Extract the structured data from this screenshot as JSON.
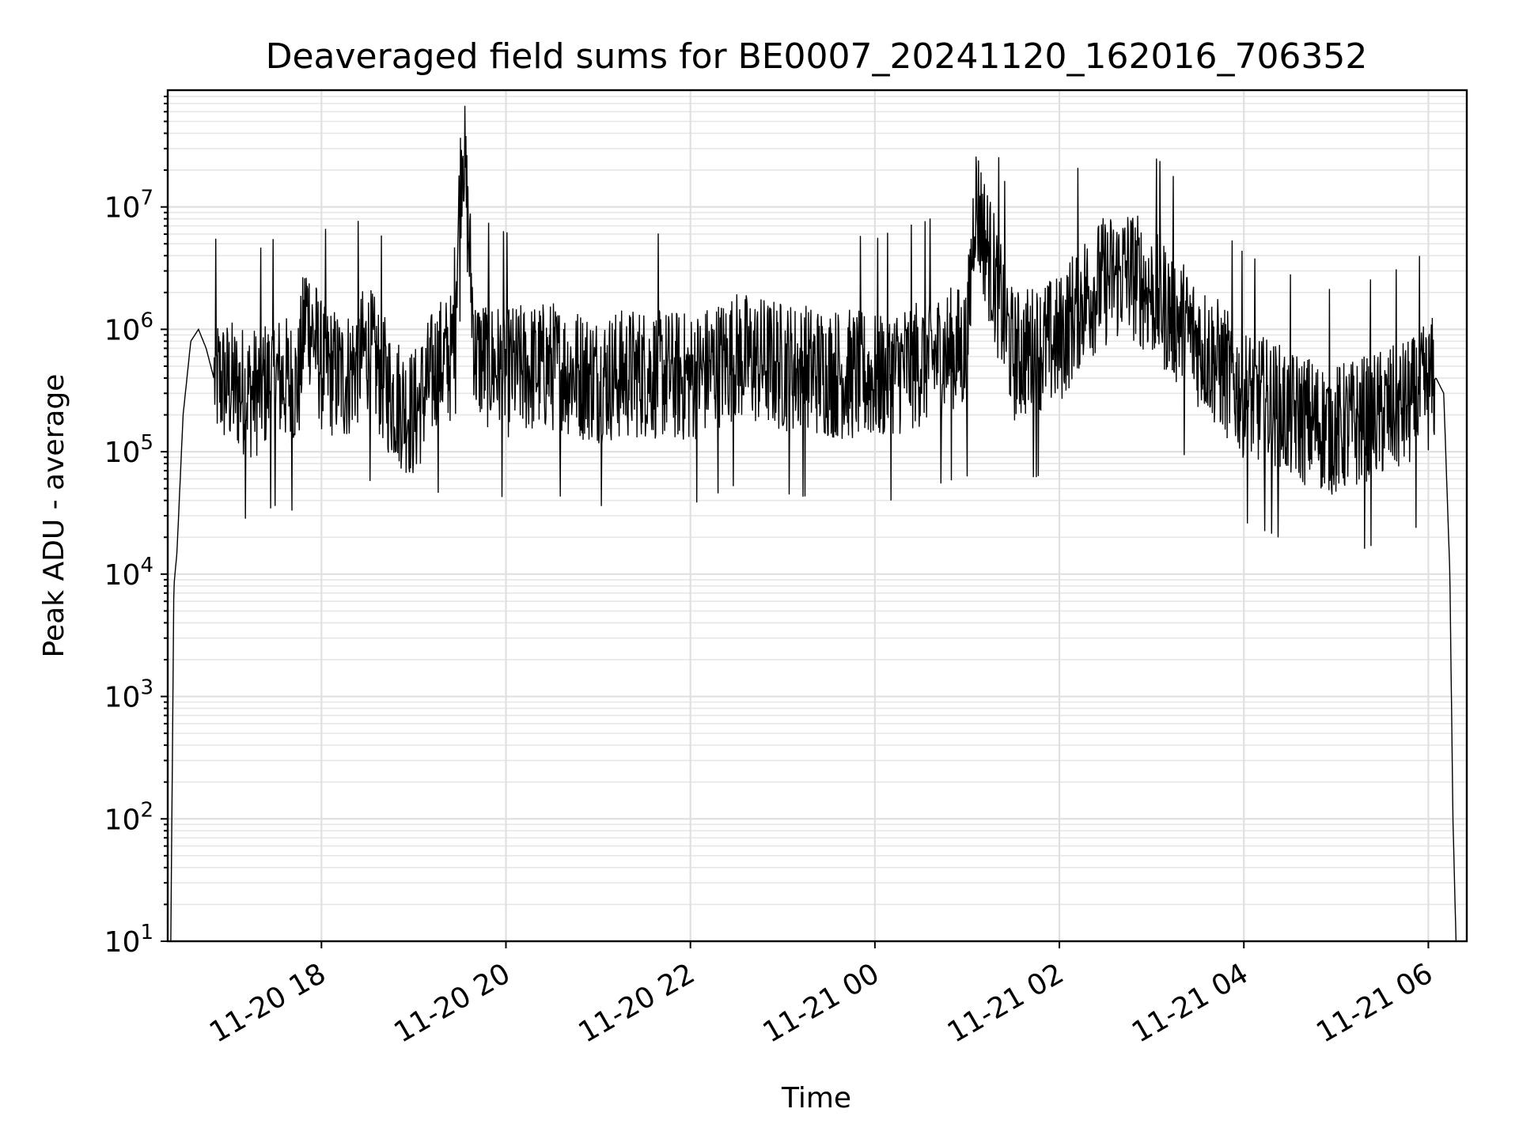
{
  "chart_data": {
    "type": "line",
    "title": "Deaveraged field sums for BE0007_20241120_162016_706352",
    "xlabel": "Time",
    "ylabel": "Peak ADU - average",
    "yscale": "log",
    "ylim": [
      10,
      90000000
    ],
    "xlim": [
      "2024-11-20 16:20",
      "2024-11-21 06:25"
    ],
    "grid": true,
    "x_ticks": [
      {
        "value": "2024-11-20 18:00",
        "label": "11-20 18"
      },
      {
        "value": "2024-11-20 20:00",
        "label": "11-20 20"
      },
      {
        "value": "2024-11-20 22:00",
        "label": "11-20 22"
      },
      {
        "value": "2024-11-21 00:00",
        "label": "11-21 00"
      },
      {
        "value": "2024-11-21 02:00",
        "label": "11-21 02"
      },
      {
        "value": "2024-11-21 04:00",
        "label": "11-21 04"
      },
      {
        "value": "2024-11-21 06:00",
        "label": "11-21 06"
      }
    ],
    "y_ticks": [
      {
        "value": 10,
        "base": "10",
        "exp": "1"
      },
      {
        "value": 100,
        "base": "10",
        "exp": "2"
      },
      {
        "value": 1000,
        "base": "10",
        "exp": "3"
      },
      {
        "value": 10000,
        "base": "10",
        "exp": "4"
      },
      {
        "value": 100000,
        "base": "10",
        "exp": "5"
      },
      {
        "value": 1000000,
        "base": "10",
        "exp": "6"
      },
      {
        "value": 10000000,
        "base": "10",
        "exp": "7"
      }
    ],
    "series": [
      {
        "color": "#000000",
        "x": [
          "2024-11-20 16:22",
          "2024-11-20 16:24",
          "2024-11-20 16:26",
          "2024-11-20 16:30",
          "2024-11-20 16:35",
          "2024-11-20 16:40",
          "2024-11-20 16:45",
          "2024-11-20 16:50",
          "2024-11-20 17:00",
          "2024-11-20 17:15",
          "2024-11-20 17:30",
          "2024-11-20 17:45",
          "2024-11-20 17:50",
          "2024-11-20 18:00",
          "2024-11-20 18:15",
          "2024-11-20 18:30",
          "2024-11-20 18:45",
          "2024-11-20 19:00",
          "2024-11-20 19:15",
          "2024-11-20 19:25",
          "2024-11-20 19:32",
          "2024-11-20 19:40",
          "2024-11-20 20:00",
          "2024-11-20 20:30",
          "2024-11-20 21:00",
          "2024-11-20 21:30",
          "2024-11-20 22:00",
          "2024-11-20 22:30",
          "2024-11-20 23:00",
          "2024-11-20 23:30",
          "2024-11-21 00:00",
          "2024-11-21 00:30",
          "2024-11-21 01:00",
          "2024-11-21 01:05",
          "2024-11-21 01:30",
          "2024-11-21 02:00",
          "2024-11-21 02:15",
          "2024-11-21 02:30",
          "2024-11-21 02:45",
          "2024-11-21 03:00",
          "2024-11-21 03:30",
          "2024-11-21 04:00",
          "2024-11-21 04:30",
          "2024-11-21 05:00",
          "2024-11-21 05:30",
          "2024-11-21 05:50",
          "2024-11-21 06:05",
          "2024-11-21 06:10",
          "2024-11-21 06:14",
          "2024-11-21 06:16",
          "2024-11-21 06:18"
        ],
        "y": [
          10,
          8000,
          15000,
          200000,
          800000,
          1000000,
          700000,
          400000,
          350000,
          300000,
          400000,
          350000,
          1500000,
          500000,
          400000,
          700000,
          300000,
          200000,
          500000,
          600000,
          40000000,
          600000,
          450000,
          500000,
          400000,
          450000,
          400000,
          600000,
          500000,
          450000,
          400000,
          550000,
          700000,
          12000000,
          600000,
          800000,
          1800000,
          2500000,
          3000000,
          2000000,
          800000,
          300000,
          200000,
          150000,
          200000,
          250000,
          400000,
          300000,
          10000,
          100,
          10
        ]
      }
    ]
  }
}
